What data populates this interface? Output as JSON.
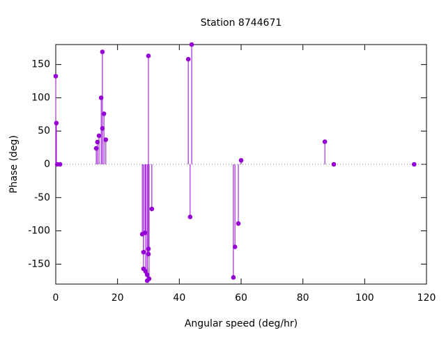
{
  "chart_data": {
    "type": "stem",
    "title": "Station 8744671",
    "x_label": "Angular speed (deg/hr)",
    "y_label": "Phase (deg)",
    "color": "#9400d3",
    "zero_axis": true,
    "grid": false,
    "xlim": [
      0,
      120
    ],
    "xticks": [
      0,
      20,
      40,
      60,
      80,
      100,
      120
    ],
    "ylim": [
      -180,
      180
    ],
    "yticks": [
      -150,
      -100,
      -50,
      0,
      50,
      100,
      150
    ],
    "x": [
      0,
      0.2,
      0.5,
      1.4,
      13.1,
      13.5,
      14.0,
      14.7,
      15.1,
      15.1,
      15.6,
      16.2,
      28.0,
      28.4,
      28.4,
      28.9,
      29.1,
      29.6,
      29.6,
      30.0,
      30.0,
      30.2,
      30.0,
      31.1,
      42.9,
      43.5,
      44.0,
      57.5,
      58.0,
      59.1,
      60.0,
      87.1,
      90.0,
      116.0
    ],
    "values": [
      132.5,
      62,
      0,
      0,
      24,
      33.5,
      43,
      100,
      169,
      54,
      76,
      37,
      -105,
      -157,
      -132,
      -103,
      -161,
      -166,
      -175,
      -127,
      -135,
      -172,
      163,
      -67,
      158,
      -79,
      180,
      -170,
      -124,
      -89,
      6,
      34,
      0,
      0
    ]
  }
}
